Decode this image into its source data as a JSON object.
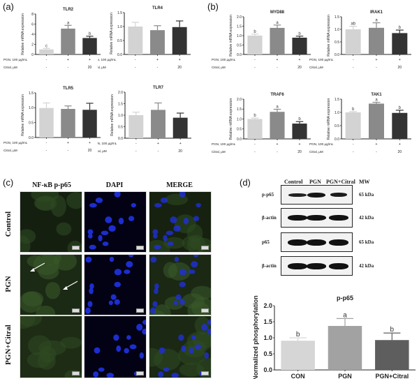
{
  "panels": {
    "a": {
      "letter": "(a)"
    },
    "b": {
      "letter": "(b)"
    },
    "c": {
      "letter": "(c)"
    },
    "d": {
      "letter": "(d)"
    }
  },
  "treatment_labels": {
    "pgn": "PGN, 100 μg/mL",
    "citral": "Citral, μM",
    "pgn_values": [
      "-",
      "+",
      "+"
    ],
    "citral_values": [
      "-",
      "-",
      "20"
    ]
  },
  "colors": {
    "control": "#d3d3d3",
    "pgn": "#8a8a8a",
    "pgn_citral": "#333333",
    "d_control": "#d6d6d6",
    "d_pgn": "#a2a2a2",
    "d_pgn_citral": "#5e5e5e"
  },
  "chart_data": [
    {
      "id": "TLR2",
      "type": "bar",
      "title": "TLR2",
      "ylabel": "Relative mRNA expression",
      "ylim": [
        0,
        8
      ],
      "yticks": [
        0,
        2,
        4,
        6,
        8
      ],
      "categories": [
        "Control",
        "PGN",
        "PGN+Citral"
      ],
      "values": [
        1.0,
        5.1,
        3.25
      ],
      "errors": [
        0.2,
        0.65,
        0.35
      ],
      "letters": [
        "c",
        "a",
        "b"
      ]
    },
    {
      "id": "TLR4",
      "type": "bar",
      "title": "TLR4",
      "ylabel": "Relative mRNA expression",
      "ylim": [
        0,
        1.5
      ],
      "yticks": [
        0.0,
        0.5,
        1.0,
        1.5
      ],
      "categories": [
        "Control",
        "PGN",
        "PGN+Citral"
      ],
      "values": [
        1.0,
        0.87,
        0.98
      ],
      "errors": [
        0.15,
        0.16,
        0.22
      ],
      "letters": [
        "",
        "",
        ""
      ]
    },
    {
      "id": "TLR5",
      "type": "bar",
      "title": "TLR5",
      "ylabel": "Relative mRNA expression",
      "ylim": [
        0,
        1.5
      ],
      "yticks": [
        0.0,
        0.5,
        1.0,
        1.5
      ],
      "categories": [
        "Control",
        "PGN",
        "PGN+Citral"
      ],
      "values": [
        0.99,
        0.96,
        0.93
      ],
      "errors": [
        0.17,
        0.1,
        0.22
      ],
      "letters": [
        "",
        "",
        ""
      ]
    },
    {
      "id": "TLR7",
      "type": "bar",
      "title": "TLR7",
      "ylabel": "Relative mRNA expression",
      "ylim": [
        0,
        2.0
      ],
      "yticks": [
        0.0,
        0.5,
        1.0,
        1.5,
        2.0
      ],
      "categories": [
        "Control",
        "PGN",
        "PGN+Citral"
      ],
      "values": [
        1.0,
        1.23,
        0.89
      ],
      "errors": [
        0.13,
        0.3,
        0.2
      ],
      "letters": [
        "",
        "",
        ""
      ]
    },
    {
      "id": "MYD88",
      "type": "bar",
      "title": "MYD88",
      "ylabel": "Relative mRNA expression",
      "ylim": [
        0,
        2.0
      ],
      "yticks": [
        0.0,
        0.5,
        1.0,
        1.5,
        2.0
      ],
      "categories": [
        "Control",
        "PGN",
        "PGN+Citral"
      ],
      "values": [
        1.0,
        1.41,
        0.89
      ],
      "errors": [
        0.08,
        0.15,
        0.08
      ],
      "letters": [
        "b",
        "a",
        "b"
      ]
    },
    {
      "id": "IRAK1",
      "type": "bar",
      "title": "IRAK1",
      "ylabel": "Relative mRNA expression",
      "ylim": [
        0,
        1.5
      ],
      "yticks": [
        0.0,
        0.5,
        1.0,
        1.5
      ],
      "categories": [
        "Control",
        "PGN",
        "PGN+Citral"
      ],
      "values": [
        1.0,
        1.06,
        0.85
      ],
      "errors": [
        0.12,
        0.2,
        0.12
      ],
      "letters": [
        "ab",
        "a",
        "b"
      ]
    },
    {
      "id": "TRAF6",
      "type": "bar",
      "title": "TRAF6",
      "ylabel": "Relative mRNA expression",
      "ylim": [
        0,
        2.0
      ],
      "yticks": [
        0.0,
        0.5,
        1.0,
        1.5,
        2.0
      ],
      "categories": [
        "Control",
        "PGN",
        "PGN+Citral"
      ],
      "values": [
        1.0,
        1.36,
        0.77
      ],
      "errors": [
        0.05,
        0.13,
        0.1
      ],
      "letters": [
        "b",
        "a",
        "b"
      ]
    },
    {
      "id": "TAK1",
      "type": "bar",
      "title": "TAK1",
      "ylabel": "Relative mRNA expression",
      "ylim": [
        0,
        1.5
      ],
      "yticks": [
        0.0,
        0.5,
        1.0,
        1.5
      ],
      "categories": [
        "Control",
        "PGN",
        "PGN+Citral"
      ],
      "values": [
        1.0,
        1.33,
        0.98
      ],
      "errors": [
        0.03,
        0.05,
        0.1
      ],
      "letters": [
        "b",
        "a",
        "b"
      ]
    },
    {
      "id": "p-p65",
      "type": "bar",
      "title": "p-p65",
      "ylabel": "Normalized phosphorylation",
      "ylim": [
        0,
        2.0
      ],
      "yticks": [
        0.0,
        0.5,
        1.0,
        1.5,
        2.0
      ],
      "categories": [
        "CON",
        "PGN",
        "PGN+Citral"
      ],
      "values": [
        0.91,
        1.37,
        0.93
      ],
      "errors": [
        0.09,
        0.23,
        0.22
      ],
      "letters": [
        "b",
        "a",
        "b"
      ]
    }
  ],
  "microscopy": {
    "columns": [
      "NF-κB p-p65",
      "DAPI",
      "MERGE"
    ],
    "rows": [
      "Control",
      "PGN",
      "PGN+Citral"
    ]
  },
  "western_blot": {
    "lanes": [
      "Control",
      "PGN",
      "PGN+Citral"
    ],
    "mw_header": "MW",
    "rows": [
      {
        "label": "p-p65",
        "mw": "65 kDa"
      },
      {
        "label": "β-actin",
        "mw": "42 kDa"
      },
      {
        "label": "p65",
        "mw": "65 kDa"
      },
      {
        "label": "β-actin",
        "mw": "42 kDa"
      }
    ]
  }
}
